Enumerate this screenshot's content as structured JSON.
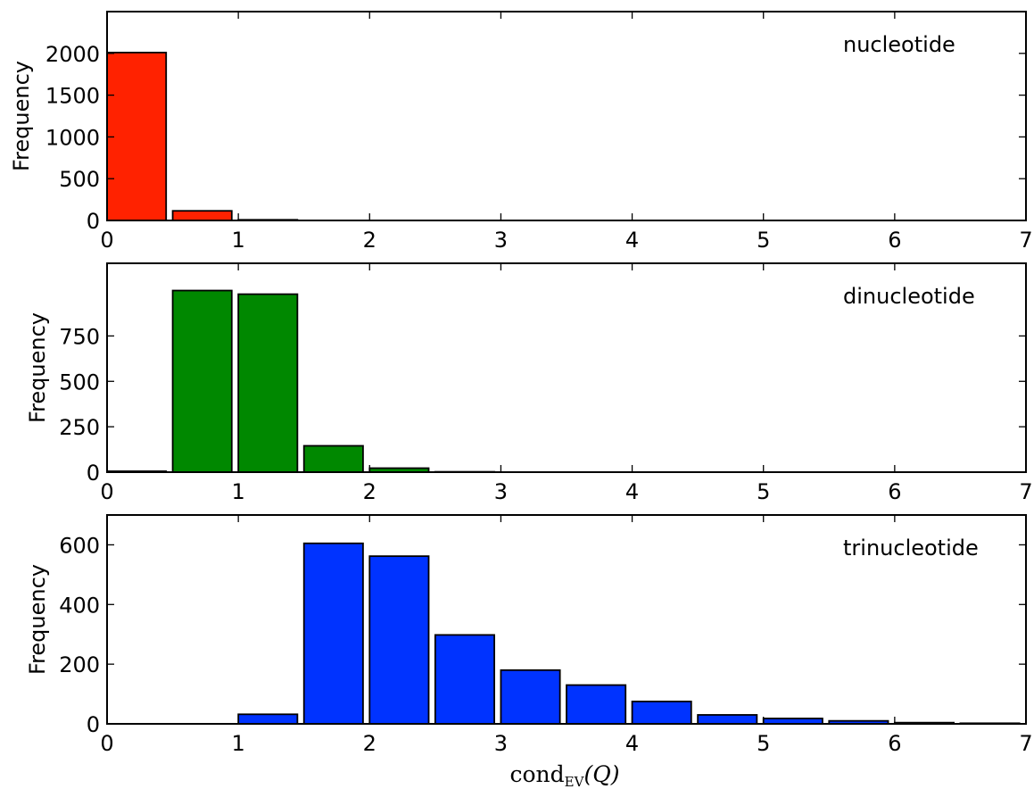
{
  "chart_data": [
    {
      "type": "bar",
      "annotation": "nucleotide",
      "ylabel": "Frequency",
      "bin_width": 0.5,
      "bar_width": 0.45,
      "bin_starts": [
        0,
        0.5,
        1,
        1.5,
        2,
        2.5,
        3,
        3.5,
        4,
        4.5,
        5,
        5.5,
        6,
        6.5
      ],
      "values": [
        2010,
        115,
        8,
        0,
        0,
        0,
        0,
        0,
        0,
        0,
        0,
        0,
        0,
        0
      ],
      "color": "#ff2200",
      "xlim": [
        0,
        7
      ],
      "ylim": [
        0,
        2500
      ],
      "xticks": [
        0,
        1,
        2,
        3,
        4,
        5,
        6,
        7
      ],
      "yticks": [
        0,
        500,
        1000,
        1500,
        2000
      ],
      "xtick_labels": [
        "0",
        "1",
        "2",
        "3",
        "4",
        "5",
        "6",
        "7"
      ],
      "ytick_labels": [
        "0",
        "500",
        "1000",
        "1500",
        "2000"
      ]
    },
    {
      "type": "bar",
      "annotation": "dinucleotide",
      "ylabel": "Frequency",
      "bin_width": 0.5,
      "bar_width": 0.45,
      "bin_starts": [
        0,
        0.5,
        1,
        1.5,
        2,
        2.5,
        3,
        3.5,
        4,
        4.5,
        5,
        5.5,
        6,
        6.5
      ],
      "values": [
        5,
        1000,
        980,
        145,
        22,
        2,
        0,
        0,
        0,
        0,
        0,
        0,
        0,
        0
      ],
      "color": "#008800",
      "xlim": [
        0,
        7
      ],
      "ylim": [
        0,
        1150
      ],
      "xticks": [
        0,
        1,
        2,
        3,
        4,
        5,
        6,
        7
      ],
      "yticks": [
        0,
        250,
        500,
        750
      ],
      "xtick_labels": [
        "0",
        "1",
        "2",
        "3",
        "4",
        "5",
        "6",
        "7"
      ],
      "ytick_labels": [
        "0",
        "250",
        "500",
        "750"
      ]
    },
    {
      "type": "bar",
      "annotation": "trinucleotide",
      "ylabel": "Frequency",
      "xlabel": {
        "base": "cond",
        "subscript": "EV",
        "argument": "(Q)"
      },
      "bin_width": 0.5,
      "bar_width": 0.45,
      "bin_starts": [
        0,
        0.5,
        1,
        1.5,
        2,
        2.5,
        3,
        3.5,
        4,
        4.5,
        5,
        5.5,
        6,
        6.5
      ],
      "values": [
        0,
        0,
        32,
        605,
        562,
        298,
        180,
        130,
        75,
        30,
        18,
        10,
        4,
        2
      ],
      "color": "#0033ff",
      "xlim": [
        0,
        7
      ],
      "ylim": [
        0,
        700
      ],
      "xticks": [
        0,
        1,
        2,
        3,
        4,
        5,
        6,
        7
      ],
      "yticks": [
        0,
        200,
        400,
        600
      ],
      "xtick_labels": [
        "0",
        "1",
        "2",
        "3",
        "4",
        "5",
        "6",
        "7"
      ],
      "ytick_labels": [
        "0",
        "200",
        "400",
        "600"
      ]
    }
  ]
}
